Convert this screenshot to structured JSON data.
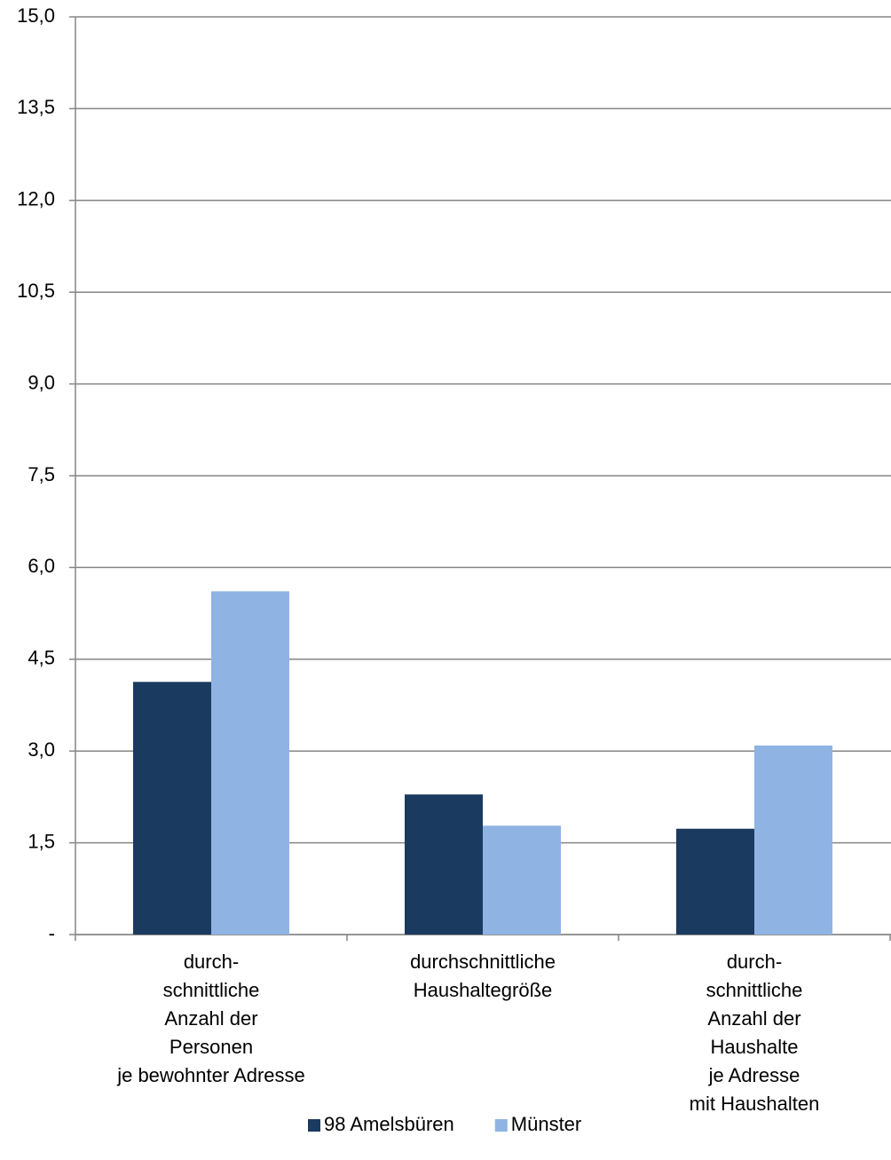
{
  "chart_data": {
    "type": "bar",
    "categories": [
      [
        "durch-",
        "schnittliche",
        "Anzahl der",
        "Personen",
        "je bewohnter Adresse"
      ],
      [
        "durchschnittliche",
        "Haushaltegröße"
      ],
      [
        "durch-",
        "schnittliche",
        "Anzahl der",
        "Haushalte",
        "je Adresse",
        "mit Haushalten"
      ]
    ],
    "series": [
      {
        "name": "98 Amelsbüren",
        "color": "#1b3a5f",
        "values": [
          4.13,
          2.29,
          1.73
        ]
      },
      {
        "name": "Münster",
        "color": "#8fb4e3",
        "values": [
          5.61,
          1.78,
          3.09
        ]
      }
    ],
    "ylim": [
      0,
      15
    ],
    "yticks": [
      {
        "value": 0,
        "label": "-"
      },
      {
        "value": 1.5,
        "label": "1,5"
      },
      {
        "value": 3,
        "label": "3,0"
      },
      {
        "value": 4.5,
        "label": "4,5"
      },
      {
        "value": 6,
        "label": "6,0"
      },
      {
        "value": 7.5,
        "label": "7,5"
      },
      {
        "value": 9,
        "label": "9,0"
      },
      {
        "value": 10.5,
        "label": "10,5"
      },
      {
        "value": 12,
        "label": "12,0"
      },
      {
        "value": 13.5,
        "label": "13,5"
      },
      {
        "value": 15,
        "label": "15,0"
      }
    ],
    "grid": true,
    "legend": "bottom"
  }
}
